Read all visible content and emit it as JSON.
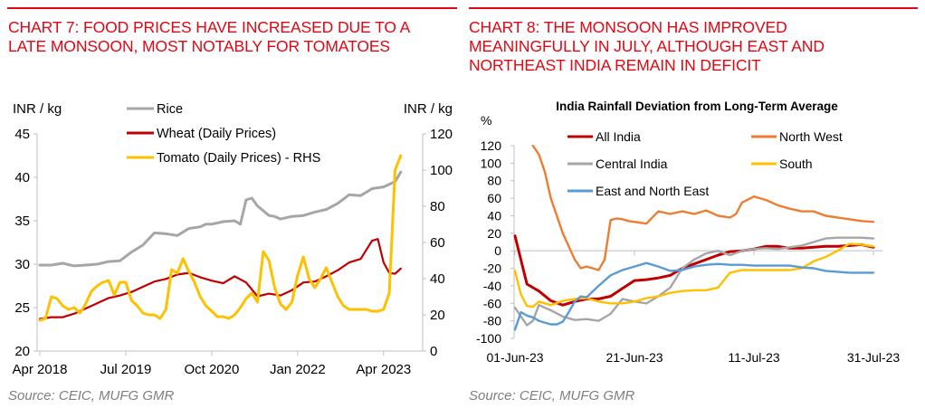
{
  "left_panel": {
    "title_lines": [
      "CHART 7: FOOD PRICES HAVE INCREASED DUE TO A",
      "LATE MONSOON, MOST NOTABLY FOR TOMATOES"
    ],
    "source": "Source: CEIC, MUFG GMR"
  },
  "right_panel": {
    "title_lines": [
      "CHART 8: THE MONSOON HAS IMPROVED",
      "MEANINGFULLY IN JULY, ALTHOUGH EAST AND",
      "NORTHEAST INDIA REMAIN IN DEFICIT"
    ],
    "source": "Source: CEIC, MUFG GMR"
  },
  "colors": {
    "accent_red": "#e30613",
    "rice": "#a6a6a6",
    "wheat": "#c00000",
    "tomato": "#ffc000",
    "all_india": "#c00000",
    "north_west": "#ed7d31",
    "central_india": "#a6a6a6",
    "south": "#ffc000",
    "east_north_east": "#5b9bd5",
    "axis": "#bfbfbf"
  },
  "chart_data": [
    {
      "type": "line",
      "title": "",
      "ylabel": "INR / kg",
      "y2label": "INR / kg",
      "ylim": [
        20,
        45
      ],
      "yticks": [
        "45",
        "40",
        "35",
        "30",
        "25",
        "20"
      ],
      "y2lim": [
        0,
        120
      ],
      "y2ticks": [
        "120",
        "100",
        "80",
        "60",
        "40",
        "20",
        "0"
      ],
      "xticks": [
        "Apr 2018",
        "Jul 2019",
        "Oct 2020",
        "Jan 2022",
        "Apr 2023"
      ],
      "x_unit": "months since Apr 2018",
      "legend_position": "top-center",
      "grid": false,
      "series": [
        {
          "name": "Rice",
          "axis": "left",
          "color_key": "rice",
          "x": [
            0,
            2,
            4,
            6,
            8,
            10,
            12,
            14,
            16,
            18,
            20,
            22,
            24,
            26,
            28,
            29,
            30,
            32,
            34,
            35,
            36,
            37,
            38,
            40,
            41,
            42,
            44,
            46,
            48,
            50,
            52,
            54,
            56,
            58,
            60,
            61,
            62,
            63
          ],
          "values": [
            29.9,
            29.9,
            30.1,
            29.8,
            29.9,
            30.0,
            30.3,
            30.4,
            31.4,
            32.2,
            33.6,
            33.5,
            33.3,
            34.1,
            34.3,
            34.6,
            34.6,
            34.9,
            35.0,
            34.6,
            37.4,
            37.6,
            36.7,
            35.6,
            35.5,
            35.2,
            35.5,
            35.6,
            36.0,
            36.3,
            37.0,
            38.0,
            37.9,
            38.7,
            38.9,
            39.2,
            39.5,
            40.6
          ]
        },
        {
          "name": "Wheat (Daily Prices)",
          "axis": "left",
          "color_key": "wheat",
          "x": [
            0,
            2,
            4,
            6,
            8,
            10,
            12,
            14,
            16,
            18,
            20,
            22,
            24,
            26,
            28,
            30,
            32,
            34,
            36,
            38,
            40,
            42,
            44,
            46,
            48,
            50,
            52,
            54,
            56,
            58,
            59,
            60,
            61,
            62,
            63
          ],
          "values": [
            23.7,
            23.9,
            23.9,
            24.3,
            24.9,
            25.5,
            26.1,
            26.4,
            26.8,
            27.4,
            28.0,
            28.3,
            28.8,
            29.0,
            28.5,
            28.1,
            27.8,
            28.6,
            27.9,
            26.3,
            26.6,
            26.4,
            27.0,
            27.9,
            28.0,
            28.6,
            29.3,
            30.2,
            30.6,
            32.7,
            32.9,
            30.2,
            29.0,
            28.9,
            29.5
          ]
        },
        {
          "name": "Tomato (Daily Prices) - RHS",
          "axis": "right",
          "color_key": "tomato",
          "x": [
            0,
            1,
            2,
            3,
            4,
            5,
            6,
            7,
            8,
            9,
            10,
            11,
            12,
            13,
            14,
            15,
            16,
            17,
            18,
            19,
            20,
            21,
            22,
            23,
            24,
            25,
            26,
            27,
            28,
            29,
            30,
            31,
            32,
            33,
            34,
            35,
            36,
            37,
            38,
            39,
            40,
            41,
            42,
            43,
            44,
            45,
            46,
            47,
            48,
            49,
            50,
            51,
            52,
            53,
            54,
            55,
            56,
            57,
            58,
            59,
            60,
            61,
            62,
            63
          ],
          "values": [
            17,
            18,
            30,
            29,
            25,
            23,
            24,
            21,
            26,
            33,
            36,
            38,
            39,
            31,
            38,
            38,
            28,
            25,
            21,
            20,
            20,
            18,
            23,
            45,
            43,
            51,
            44,
            38,
            30,
            25,
            22,
            19,
            19,
            18,
            20,
            24,
            29,
            32,
            27,
            55,
            50,
            35,
            26,
            23,
            27,
            42,
            52,
            40,
            35,
            40,
            46,
            38,
            30,
            25,
            23,
            23,
            23,
            23,
            22,
            22,
            23,
            32,
            100,
            108
          ]
        }
      ]
    },
    {
      "type": "line",
      "title": "India Rainfall Deviation from Long-Term Average",
      "ylabel": "%",
      "ylim": [
        -100,
        120
      ],
      "yticks": [
        "120",
        "100",
        "80",
        "60",
        "40",
        "20",
        "0",
        "-20",
        "-40",
        "-60",
        "-80",
        "-100"
      ],
      "xticks": [
        "01-Jun-23",
        "21-Jun-23",
        "11-Jul-23",
        "31-Jul-23"
      ],
      "x_unit": "days since 01-Jun-23",
      "legend_position": "top",
      "grid": false,
      "series": [
        {
          "name": "All India",
          "color_key": "all_india",
          "x": [
            0,
            2,
            4,
            6,
            8,
            10,
            12,
            14,
            16,
            18,
            20,
            22,
            24,
            26,
            28,
            30,
            32,
            34,
            36,
            38,
            40,
            42,
            44,
            46,
            48,
            50,
            52,
            54,
            56,
            58,
            60
          ],
          "values": [
            17,
            -38,
            -46,
            -57,
            -62,
            -58,
            -55,
            -55,
            -52,
            -43,
            -34,
            -33,
            -31,
            -28,
            -20,
            -15,
            -10,
            -5,
            -1,
            0,
            2,
            5,
            5,
            3,
            3,
            4,
            5,
            5,
            6,
            7,
            4
          ]
        },
        {
          "name": "North West",
          "color_key": "north_west",
          "x": [
            3,
            4,
            5,
            6,
            7,
            8,
            9,
            10,
            11,
            12,
            13,
            14,
            15,
            16,
            17,
            18,
            19,
            20,
            22,
            24,
            26,
            28,
            30,
            32,
            34,
            36,
            37,
            38,
            40,
            42,
            44,
            46,
            48,
            50,
            52,
            54,
            56,
            58,
            60
          ],
          "values": [
            120,
            110,
            90,
            60,
            40,
            20,
            5,
            -10,
            -20,
            -18,
            -20,
            -22,
            -10,
            35,
            37,
            36,
            34,
            33,
            31,
            45,
            42,
            45,
            42,
            46,
            40,
            38,
            42,
            55,
            62,
            58,
            52,
            48,
            45,
            45,
            40,
            38,
            36,
            34,
            33
          ]
        },
        {
          "name": "Central India",
          "color_key": "central_india",
          "x": [
            0,
            2,
            3,
            4,
            6,
            8,
            10,
            12,
            14,
            16,
            18,
            20,
            22,
            24,
            26,
            28,
            30,
            32,
            34,
            36,
            38,
            40,
            42,
            44,
            46,
            48,
            50,
            52,
            54,
            56,
            58,
            60
          ],
          "values": [
            -65,
            -85,
            -80,
            -62,
            -68,
            -75,
            -79,
            -78,
            -80,
            -72,
            -55,
            -58,
            -60,
            -52,
            -42,
            -20,
            -10,
            -3,
            0,
            -5,
            0,
            2,
            3,
            2,
            4,
            6,
            10,
            14,
            15,
            15,
            15,
            14
          ]
        },
        {
          "name": "South",
          "color_key": "south",
          "x": [
            0,
            1,
            2,
            3,
            4,
            5,
            6,
            8,
            10,
            12,
            14,
            16,
            18,
            20,
            22,
            24,
            26,
            28,
            30,
            32,
            34,
            36,
            38,
            40,
            42,
            44,
            46,
            48,
            50,
            52,
            54,
            56,
            58,
            60
          ],
          "values": [
            -23,
            -50,
            -63,
            -64,
            -58,
            -60,
            -62,
            -57,
            -55,
            -54,
            -58,
            -60,
            -60,
            -58,
            -54,
            -52,
            -48,
            -46,
            -45,
            -45,
            -42,
            -25,
            -22,
            -22,
            -22,
            -22,
            -22,
            -20,
            -12,
            -7,
            0,
            8,
            7,
            5
          ]
        },
        {
          "name": "East and North East",
          "color_key": "east_north_east",
          "x": [
            0,
            1,
            2,
            3,
            4,
            5,
            6,
            7,
            8,
            9,
            10,
            11,
            12,
            14,
            16,
            18,
            20,
            22,
            24,
            26,
            28,
            30,
            32,
            34,
            36,
            38,
            40,
            42,
            44,
            46,
            48,
            50,
            52,
            54,
            56,
            58,
            60
          ],
          "values": [
            -90,
            -70,
            -74,
            -76,
            -80,
            -82,
            -84,
            -84,
            -81,
            -70,
            -58,
            -52,
            -53,
            -40,
            -28,
            -22,
            -18,
            -14,
            -18,
            -23,
            -22,
            -18,
            -16,
            -15,
            -16,
            -16,
            -17,
            -17,
            -17,
            -17,
            -19,
            -20,
            -23,
            -24,
            -25,
            -25,
            -25
          ]
        }
      ]
    }
  ]
}
